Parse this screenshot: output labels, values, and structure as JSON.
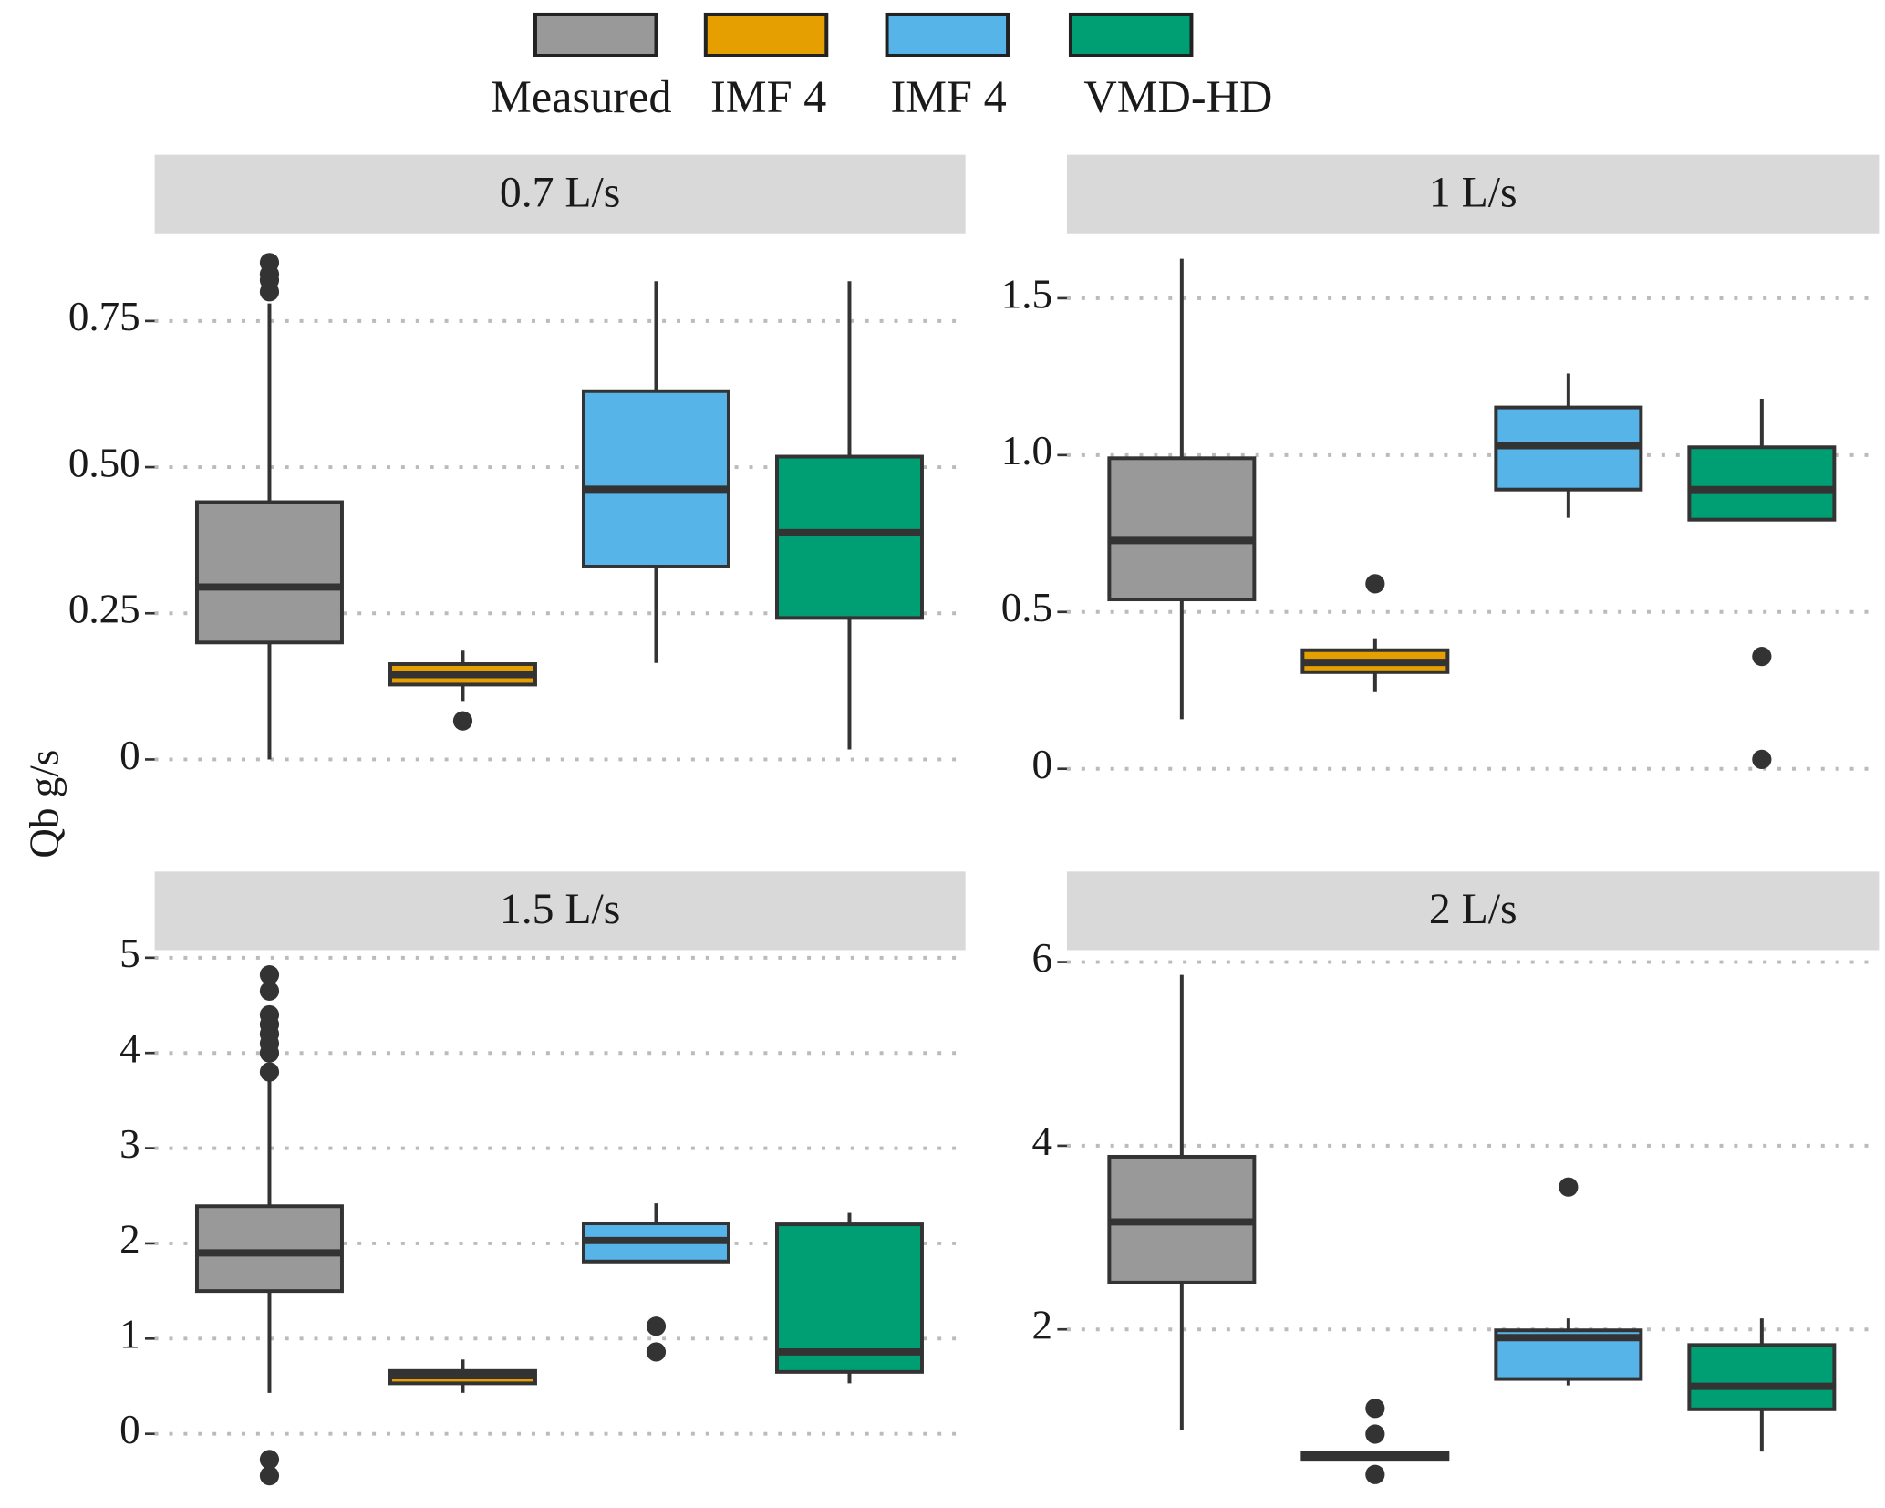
{
  "legend": [
    {
      "name": "Measured",
      "color": "#999999"
    },
    {
      "name": "IMF 4",
      "color": "#E69F00"
    },
    {
      "name": "IMF 4",
      "color": "#56B4E9"
    },
    {
      "name": "VMD-HD",
      "color": "#009E73"
    }
  ],
  "y_label": "Qb g/s",
  "chart_data": [
    {
      "type": "box",
      "title": "0.7 L/s",
      "ylim": [
        -0.045,
        0.9
      ],
      "yticks": [
        0,
        0.25,
        {
          "value": 0.5,
          "label": "0.50"
        },
        0.75
      ],
      "series": [
        {
          "min": 0,
          "q1": 0.2,
          "median": 0.295,
          "q3": 0.44,
          "max": 0.78,
          "outliers": [
            0.8,
            0.82,
            0.83,
            0.85
          ]
        },
        {
          "min": 0.1,
          "q1": 0.128,
          "median": 0.145,
          "q3": 0.163,
          "max": 0.186,
          "outliers": [
            0.066
          ]
        },
        {
          "min": 0.165,
          "q1": 0.33,
          "median": 0.462,
          "q3": 0.63,
          "max": 0.818,
          "outliers": []
        },
        {
          "min": 0.017,
          "q1": 0.242,
          "median": 0.388,
          "q3": 0.518,
          "max": 0.818,
          "outliers": []
        }
      ]
    },
    {
      "type": "box",
      "title": "1 L/s",
      "ylim": [
        -0.054,
        1.707
      ],
      "yticks": [
        0,
        0.5,
        {
          "value": 1,
          "label": "1.0"
        },
        1.5
      ],
      "series": [
        {
          "min": 0.158,
          "q1": 0.54,
          "median": 0.728,
          "q3": 0.99,
          "max": 1.626,
          "outliers": []
        },
        {
          "min": 0.247,
          "q1": 0.308,
          "median": 0.339,
          "q3": 0.378,
          "max": 0.416,
          "outliers": [
            0.59
          ]
        },
        {
          "min": 0.8,
          "q1": 0.89,
          "median": 1.03,
          "q3": 1.152,
          "max": 1.26,
          "outliers": []
        },
        {
          "min": 0.794,
          "q1": 0.794,
          "median": 0.89,
          "q3": 1.025,
          "max": 1.18,
          "outliers": [
            0.358,
            0.03
          ]
        }
      ]
    },
    {
      "type": "box",
      "title": "1.5 L/s",
      "ylim": [
        -0.62,
        5.08
      ],
      "yticks": [
        0,
        1,
        2,
        3,
        4,
        5
      ],
      "series": [
        {
          "min": 0.43,
          "q1": 1.5,
          "median": 1.9,
          "q3": 2.39,
          "max": 3.7,
          "outliers": [
            3.8,
            4.0,
            4.1,
            4.2,
            4.3,
            4.4,
            4.65,
            4.82,
            -0.27,
            -0.44
          ]
        },
        {
          "min": 0.43,
          "q1": 0.53,
          "median": 0.61,
          "q3": 0.66,
          "max": 0.78,
          "outliers": []
        },
        {
          "min": 1.81,
          "q1": 1.81,
          "median": 2.03,
          "q3": 2.21,
          "max": 2.42,
          "outliers": [
            1.13,
            0.86
          ]
        },
        {
          "min": 0.53,
          "q1": 0.65,
          "median": 0.86,
          "q3": 2.2,
          "max": 2.32,
          "outliers": []
        }
      ]
    },
    {
      "type": "box",
      "title": "2 L/s",
      "ylim": [
        0.22,
        6.13
      ],
      "yticks": [
        2,
        4,
        6
      ],
      "series": [
        {
          "min": 0.91,
          "q1": 2.51,
          "median": 3.17,
          "q3": 3.88,
          "max": 5.86,
          "outliers": []
        },
        {
          "min": 0.58,
          "q1": 0.58,
          "median": 0.62,
          "q3": 0.66,
          "max": 0.66,
          "outliers": [
            1.14,
            0.86,
            0.42
          ]
        },
        {
          "min": 1.39,
          "q1": 1.46,
          "median": 1.91,
          "q3": 1.99,
          "max": 2.12,
          "outliers": [
            3.55
          ]
        },
        {
          "min": 0.67,
          "q1": 1.13,
          "median": 1.38,
          "q3": 1.83,
          "max": 2.12,
          "outliers": []
        }
      ]
    }
  ]
}
